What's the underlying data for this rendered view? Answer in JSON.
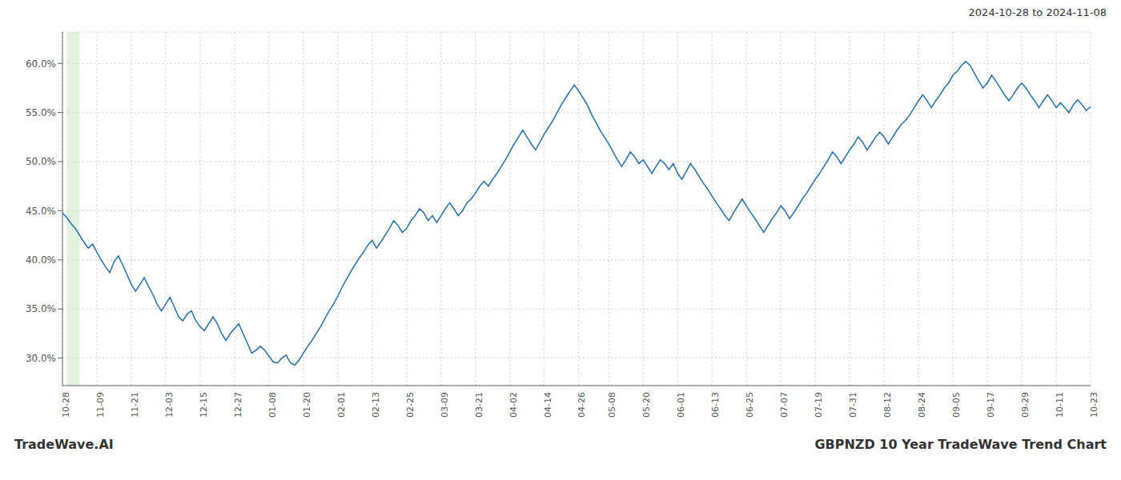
{
  "chart_data": {
    "type": "line",
    "title": "GBPNZD 10 Year TradeWave Trend Chart",
    "subtitle": "2024-10-28 to 2024-11-08",
    "annotations": [
      "TradeWave.AI"
    ],
    "categories": [
      "10-28",
      null,
      null,
      null,
      null,
      null,
      null,
      null,
      "11-09",
      null,
      null,
      null,
      null,
      null,
      null,
      null,
      "11-21",
      null,
      null,
      null,
      null,
      null,
      null,
      null,
      "12-03",
      null,
      null,
      null,
      null,
      null,
      null,
      null,
      "12-15",
      null,
      null,
      null,
      null,
      null,
      null,
      null,
      "12-27",
      null,
      null,
      null,
      null,
      null,
      null,
      null,
      "01-08",
      null,
      null,
      null,
      null,
      null,
      null,
      null,
      "01-20",
      null,
      null,
      null,
      null,
      null,
      null,
      null,
      "02-01",
      null,
      null,
      null,
      null,
      null,
      null,
      null,
      "02-13",
      null,
      null,
      null,
      null,
      null,
      null,
      null,
      "02-25",
      null,
      null,
      null,
      null,
      null,
      null,
      null,
      "03-09",
      null,
      null,
      null,
      null,
      null,
      null,
      null,
      "03-21",
      null,
      null,
      null,
      null,
      null,
      null,
      null,
      "04-02",
      null,
      null,
      null,
      null,
      null,
      null,
      null,
      "04-14",
      null,
      null,
      null,
      null,
      null,
      null,
      null,
      "04-26",
      null,
      null,
      null,
      null,
      null,
      null,
      "05-08",
      null,
      null,
      null,
      null,
      null,
      null,
      null,
      "05-20",
      null,
      null,
      null,
      null,
      null,
      null,
      null,
      "06-01",
      null,
      null,
      null,
      null,
      null,
      null,
      null,
      "06-13",
      null,
      null,
      null,
      null,
      null,
      null,
      null,
      "06-25",
      null,
      null,
      null,
      null,
      null,
      null,
      null,
      "07-07",
      null,
      null,
      null,
      null,
      null,
      null,
      null,
      "07-19",
      null,
      null,
      null,
      null,
      null,
      null,
      null,
      "07-31",
      null,
      null,
      null,
      null,
      null,
      null,
      null,
      "08-12",
      null,
      null,
      null,
      null,
      null,
      null,
      null,
      "08-24",
      null,
      null,
      null,
      null,
      null,
      null,
      null,
      "09-05",
      null,
      null,
      null,
      null,
      null,
      null,
      null,
      "09-17",
      null,
      null,
      null,
      null,
      null,
      null,
      null,
      "09-29",
      null,
      null,
      null,
      null,
      null,
      null,
      null,
      "10-11",
      null,
      null,
      null,
      null,
      null,
      null,
      null,
      "10-23"
    ],
    "values": [
      0.448,
      0.443,
      0.437,
      0.432,
      0.425,
      0.418,
      0.412,
      0.416,
      0.408,
      0.4,
      0.393,
      0.387,
      0.398,
      0.404,
      0.395,
      0.385,
      0.375,
      0.368,
      0.375,
      0.382,
      0.373,
      0.365,
      0.355,
      0.348,
      0.355,
      0.362,
      0.352,
      0.342,
      0.338,
      0.345,
      0.348,
      0.338,
      0.332,
      0.328,
      0.335,
      0.342,
      0.335,
      0.325,
      0.318,
      0.325,
      0.33,
      0.335,
      0.325,
      0.315,
      0.305,
      0.308,
      0.312,
      0.308,
      0.302,
      0.296,
      0.295,
      0.3,
      0.303,
      0.295,
      0.293,
      0.298,
      0.305,
      0.312,
      0.318,
      0.325,
      0.332,
      0.34,
      0.348,
      0.355,
      0.363,
      0.372,
      0.38,
      0.388,
      0.395,
      0.402,
      0.408,
      0.415,
      0.42,
      0.412,
      0.418,
      0.425,
      0.432,
      0.44,
      0.435,
      0.428,
      0.432,
      0.44,
      0.445,
      0.452,
      0.448,
      0.44,
      0.445,
      0.438,
      0.445,
      0.452,
      0.458,
      0.452,
      0.445,
      0.45,
      0.458,
      0.462,
      0.468,
      0.475,
      0.48,
      0.475,
      0.482,
      0.488,
      0.495,
      0.502,
      0.51,
      0.518,
      0.525,
      0.532,
      0.525,
      0.518,
      0.512,
      0.52,
      0.528,
      0.535,
      0.542,
      0.55,
      0.558,
      0.565,
      0.572,
      0.578,
      0.572,
      0.565,
      0.558,
      0.548,
      0.54,
      0.532,
      0.525,
      0.518,
      0.51,
      0.502,
      0.495,
      0.502,
      0.51,
      0.505,
      0.498,
      0.502,
      0.495,
      0.488,
      0.495,
      0.502,
      0.498,
      0.492,
      0.498,
      0.488,
      0.482,
      0.49,
      0.498,
      0.492,
      0.485,
      0.478,
      0.472,
      0.465,
      0.458,
      0.452,
      0.445,
      0.44,
      0.448,
      0.455,
      0.462,
      0.455,
      0.448,
      0.442,
      0.435,
      0.428,
      0.435,
      0.442,
      0.448,
      0.455,
      0.45,
      0.442,
      0.448,
      0.455,
      0.462,
      0.468,
      0.475,
      0.482,
      0.488,
      0.495,
      0.502,
      0.51,
      0.505,
      0.498,
      0.505,
      0.512,
      0.518,
      0.525,
      0.52,
      0.512,
      0.518,
      0.525,
      0.53,
      0.525,
      0.518,
      0.525,
      0.532,
      0.538,
      0.542,
      0.548,
      0.555,
      0.562,
      0.568,
      0.562,
      0.555,
      0.562,
      0.568,
      0.575,
      0.58,
      0.588,
      0.592,
      0.598,
      0.602,
      0.598,
      0.59,
      0.582,
      0.575,
      0.58,
      0.588,
      0.582,
      0.575,
      0.568,
      0.562,
      0.568,
      0.575,
      0.58,
      0.575,
      0.568,
      0.562,
      0.555,
      0.562,
      0.568,
      0.562,
      0.555,
      0.56,
      0.555,
      0.55,
      0.558,
      0.563,
      0.558,
      0.552,
      0.556
    ],
    "color": "#2070b4",
    "highlight": {
      "start": 1,
      "end": 4,
      "color": "#d6ecd2"
    },
    "ylim": [
      0.272,
      0.632
    ],
    "yticks": [
      {
        "value": 0.3,
        "label": "30.0%"
      },
      {
        "value": 0.35,
        "label": "35.0%"
      },
      {
        "value": 0.4,
        "label": "40.0%"
      },
      {
        "value": 0.45,
        "label": "45.0%"
      },
      {
        "value": 0.5,
        "label": "50.0%"
      },
      {
        "value": 0.55,
        "label": "55.0%"
      },
      {
        "value": 0.6,
        "label": "60.0%"
      }
    ],
    "grid": true
  }
}
